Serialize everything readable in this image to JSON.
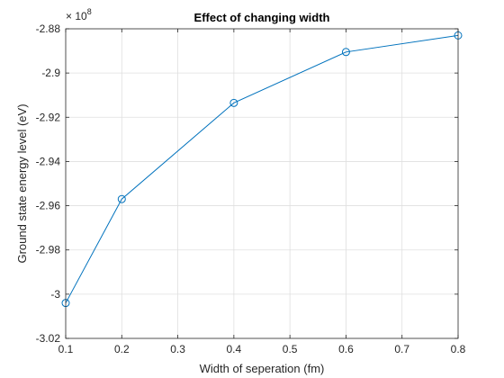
{
  "chart_data": {
    "type": "line",
    "title": "Effect of changing width",
    "xlabel": "Width of seperation (fm)",
    "ylabel": "Ground state energy level (eV)",
    "xlim": [
      0.1,
      0.8
    ],
    "ylim": [
      -3.02,
      -2.88
    ],
    "xticks": [
      0.1,
      0.2,
      0.3,
      0.4,
      0.5,
      0.6,
      0.7,
      0.8
    ],
    "xtick_labels": [
      "0.1",
      "0.2",
      "0.3",
      "0.4",
      "0.5",
      "0.6",
      "0.7",
      "0.8"
    ],
    "yticks": [
      -3.02,
      -3.0,
      -2.98,
      -2.96,
      -2.94,
      -2.92,
      -2.9,
      -2.88
    ],
    "ytick_labels": [
      "-3.02",
      "-3",
      "-2.98",
      "-2.96",
      "-2.94",
      "-2.92",
      "-2.9",
      "-2.88"
    ],
    "y_exponent_base": "× 10",
    "y_exponent_power": "8",
    "grid": true,
    "series": [
      {
        "x": [
          0.1,
          0.2,
          0.4,
          0.6,
          0.8
        ],
        "y": [
          -3.004,
          -2.957,
          -2.9135,
          -2.8905,
          -2.883
        ],
        "color": "#0072BD",
        "marker": "circle"
      }
    ]
  }
}
